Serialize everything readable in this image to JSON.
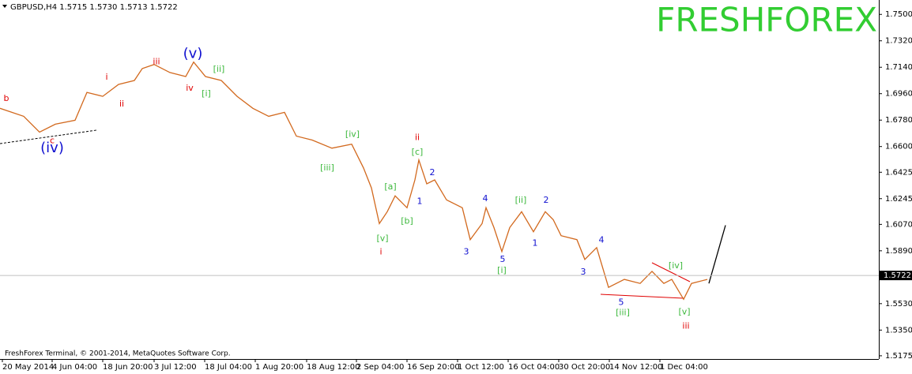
{
  "chart_data": {
    "type": "line",
    "header": "GBPUSD,H4  1.5715 1.5730 1.5713 1.5722",
    "watermark": "FRESHFOREX",
    "footer": "FreshForex Terminal, © 2001-2014, MetaQuotes Software Corp.",
    "xlim": [
      0,
      1112
    ],
    "ylim": [
      1.5153,
      1.7598
    ],
    "yticks": [
      {
        "value": 1.75,
        "label": "1.7500"
      },
      {
        "value": 1.732,
        "label": "1.7320"
      },
      {
        "value": 1.714,
        "label": "1.7140"
      },
      {
        "value": 1.696,
        "label": "1.6960"
      },
      {
        "value": 1.678,
        "label": "1.6780"
      },
      {
        "value": 1.66,
        "label": "1.6600"
      },
      {
        "value": 1.6425,
        "label": "1.6425"
      },
      {
        "value": 1.6245,
        "label": "1.6245"
      },
      {
        "value": 1.607,
        "label": "1.6070"
      },
      {
        "value": 1.589,
        "label": "1.5890"
      },
      {
        "value": 1.553,
        "label": "1.5530"
      },
      {
        "value": 1.535,
        "label": "1.5350"
      },
      {
        "value": 1.5175,
        "label": "1.5175"
      }
    ],
    "xticks": [
      {
        "value": 3,
        "label": "20 May 2014"
      },
      {
        "value": 66,
        "label": "4 Jun 04:00"
      },
      {
        "value": 130,
        "label": "18 Jun 20:00"
      },
      {
        "value": 195,
        "label": "3 Jul 12:00"
      },
      {
        "value": 259,
        "label": "18 Jul 04:00"
      },
      {
        "value": 323,
        "label": "1 Aug 20:00"
      },
      {
        "value": 388,
        "label": "18 Aug 12:00"
      },
      {
        "value": 451,
        "label": "2 Sep 04:00"
      },
      {
        "value": 515,
        "label": "16 Sep 20:00"
      },
      {
        "value": 579,
        "label": "1 Oct 12:00"
      },
      {
        "value": 643,
        "label": "16 Oct 04:00"
      },
      {
        "value": 707,
        "label": "30 Oct 20:00"
      },
      {
        "value": 771,
        "label": "14 Nov 12:00"
      },
      {
        "value": 835,
        "label": "1 Dec 04:00"
      }
    ],
    "last_price": {
      "value": 1.5722,
      "label": "1.5722"
    },
    "series": [
      {
        "color": "#d2691e",
        "x": [
          0,
          30,
          50,
          70,
          95,
          110,
          130,
          150,
          170,
          180,
          195,
          215,
          235,
          245,
          260,
          280,
          300,
          320,
          340,
          360,
          375,
          395,
          420,
          445,
          460,
          470,
          480,
          490,
          500,
          515,
          525,
          530,
          540,
          550,
          565,
          585,
          595,
          610,
          615,
          625,
          635,
          645,
          660,
          675,
          690,
          700,
          710,
          730,
          740,
          755,
          770,
          790,
          810,
          825,
          840,
          850,
          865,
          875,
          895
        ],
        "values": [
          1.686,
          1.6806,
          1.6698,
          1.6752,
          1.6779,
          1.6969,
          1.6942,
          1.7023,
          1.705,
          1.7131,
          1.7159,
          1.7104,
          1.7077,
          1.7175,
          1.7077,
          1.705,
          1.6942,
          1.686,
          1.6806,
          1.6833,
          1.6671,
          1.6644,
          1.6589,
          1.6616,
          1.6454,
          1.6318,
          1.6075,
          1.6156,
          1.6264,
          1.6183,
          1.6373,
          1.6508,
          1.6346,
          1.6373,
          1.6237,
          1.6183,
          1.5966,
          1.6075,
          1.6183,
          1.6048,
          1.5885,
          1.6048,
          1.6156,
          1.602,
          1.6156,
          1.6102,
          1.5993,
          1.5966,
          1.5831,
          1.5912,
          1.5641,
          1.5695,
          1.5668,
          1.575,
          1.5668,
          1.5695,
          1.556,
          1.5668,
          1.5695
        ]
      },
      {
        "color": "#000000",
        "x": [
          897,
          918
        ],
        "values": [
          1.5668,
          1.6064
        ]
      }
    ],
    "annotations": [
      {
        "text": "b",
        "color": "#e00000",
        "x": 8,
        "y": 1.6925
      },
      {
        "text": "c",
        "color": "#e00000",
        "x": 66,
        "y": 1.6638
      },
      {
        "text": "(iv)",
        "color": "#1010d0",
        "x": 66,
        "y": 1.6589
      },
      {
        "text": "i",
        "color": "#e00000",
        "x": 135,
        "y": 1.7072
      },
      {
        "text": "ii",
        "color": "#e00000",
        "x": 154,
        "y": 1.6888
      },
      {
        "text": "iii",
        "color": "#e00000",
        "x": 198,
        "y": 1.7175
      },
      {
        "text": "(v)",
        "color": "#1010d0",
        "x": 244,
        "y": 1.7229
      },
      {
        "text": "iv",
        "color": "#e00000",
        "x": 240,
        "y": 1.6996
      },
      {
        "text": "[ii]",
        "color": "#3cb83c",
        "x": 277,
        "y": 1.7126
      },
      {
        "text": "[i]",
        "color": "#3cb83c",
        "x": 261,
        "y": 1.6958
      },
      {
        "text": "[iv]",
        "color": "#3cb83c",
        "x": 446,
        "y": 1.6682
      },
      {
        "text": "[iii]",
        "color": "#3cb83c",
        "x": 414,
        "y": 1.6454
      },
      {
        "text": "ii",
        "color": "#e00000",
        "x": 528,
        "y": 1.666
      },
      {
        "text": "[c]",
        "color": "#3cb83c",
        "x": 528,
        "y": 1.6562
      },
      {
        "text": "2",
        "color": "#1010d0",
        "x": 547,
        "y": 1.6421
      },
      {
        "text": "[a]",
        "color": "#3cb83c",
        "x": 494,
        "y": 1.6324
      },
      {
        "text": "1",
        "color": "#1010d0",
        "x": 531,
        "y": 1.6226
      },
      {
        "text": "[b]",
        "color": "#3cb83c",
        "x": 515,
        "y": 1.6091
      },
      {
        "text": "[v]",
        "color": "#3cb83c",
        "x": 484,
        "y": 1.5972
      },
      {
        "text": "i",
        "color": "#e00000",
        "x": 482,
        "y": 1.588
      },
      {
        "text": "3",
        "color": "#1010d0",
        "x": 590,
        "y": 1.588
      },
      {
        "text": "4",
        "color": "#1010d0",
        "x": 614,
        "y": 1.6243
      },
      {
        "text": "5",
        "color": "#1010d0",
        "x": 636,
        "y": 1.5831
      },
      {
        "text": "[i]",
        "color": "#3cb83c",
        "x": 635,
        "y": 1.5755
      },
      {
        "text": "[ii]",
        "color": "#3cb83c",
        "x": 659,
        "y": 1.6232
      },
      {
        "text": "2",
        "color": "#1010d0",
        "x": 691,
        "y": 1.6232
      },
      {
        "text": "1",
        "color": "#1010d0",
        "x": 677,
        "y": 1.5939
      },
      {
        "text": "4",
        "color": "#1010d0",
        "x": 761,
        "y": 1.5961
      },
      {
        "text": "3",
        "color": "#1010d0",
        "x": 738,
        "y": 1.5744
      },
      {
        "text": "5",
        "color": "#1010d0",
        "x": 786,
        "y": 1.5538
      },
      {
        "text": "[iii]",
        "color": "#3cb83c",
        "x": 788,
        "y": 1.5468
      },
      {
        "text": "[iv]",
        "color": "#3cb83c",
        "x": 855,
        "y": 1.5787
      },
      {
        "text": "[v]",
        "color": "#3cb83c",
        "x": 866,
        "y": 1.5473
      },
      {
        "text": "iii",
        "color": "#e00000",
        "x": 868,
        "y": 1.5375
      }
    ]
  }
}
